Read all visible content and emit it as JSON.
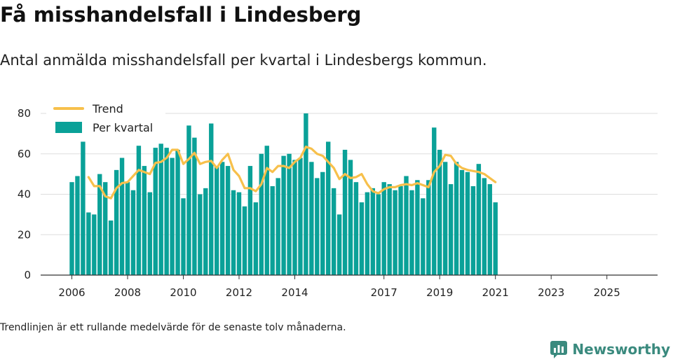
{
  "title": "Få misshandelsfall i Lindesberg",
  "subtitle": "Antal anmälda misshandelsfall per kvartal i Lindesbergs kommun.",
  "footnote": "Trendlinjen är ett rullande medelvärde för de senaste tolv månaderna.",
  "brand": {
    "name": "Newsworthy",
    "icon": "newsworthy-logo-icon"
  },
  "colors": {
    "bar": "#0aa198",
    "trend": "#f7c04b",
    "grid": "#dddddd",
    "axis": "#333333"
  },
  "chart_data": {
    "type": "bar",
    "grid": true,
    "legend_position": "top-left",
    "ylim": [
      0,
      80
    ],
    "yticks": [
      0,
      20,
      40,
      60,
      80
    ],
    "xtick_labels": [
      "2006",
      "2008",
      "2010",
      "2012",
      "2014",
      "2017",
      "2019",
      "2021",
      "2023",
      "2025"
    ],
    "xtick_indices": [
      0,
      10,
      20,
      30,
      40,
      56,
      66,
      76,
      86,
      96
    ],
    "series": [
      {
        "name": "Per kvartal",
        "kind": "bar",
        "values": [
          46,
          49,
          66,
          31,
          30,
          50,
          46,
          27,
          52,
          58,
          46,
          42,
          64,
          54,
          41,
          63,
          65,
          63,
          58,
          62,
          38,
          74,
          68,
          40,
          43,
          75,
          54,
          56,
          54,
          42,
          41,
          34,
          54,
          36,
          60,
          64,
          44,
          48,
          59,
          60,
          57,
          58,
          80,
          56,
          48,
          51,
          66,
          43,
          30,
          62,
          57,
          46,
          36,
          41,
          43,
          40,
          46,
          45,
          42,
          44,
          49,
          42,
          47,
          38,
          47,
          73,
          62,
          56,
          45,
          56,
          52,
          51,
          44,
          55,
          48,
          45,
          36
        ]
      },
      {
        "name": "Trend",
        "kind": "line",
        "values": [
          null,
          null,
          null,
          48.5,
          44,
          44,
          39,
          38,
          43,
          45.5,
          46,
          49,
          52,
          51,
          50,
          55.5,
          56,
          58,
          62,
          62,
          55,
          57.5,
          60.5,
          55,
          56,
          56.5,
          53,
          57,
          60,
          52,
          49,
          43,
          43,
          41.5,
          45,
          53,
          51,
          54,
          54,
          53,
          56,
          58,
          63.5,
          62.5,
          60,
          59,
          56,
          53,
          47.5,
          50,
          48,
          48.5,
          50,
          45,
          41.5,
          40.5,
          42.5,
          43.5,
          43.5,
          44.5,
          45,
          44.5,
          45.5,
          44.5,
          43.5,
          51,
          54,
          59.5,
          59,
          55,
          53,
          52,
          51.5,
          51,
          50,
          48,
          46
        ]
      }
    ]
  }
}
